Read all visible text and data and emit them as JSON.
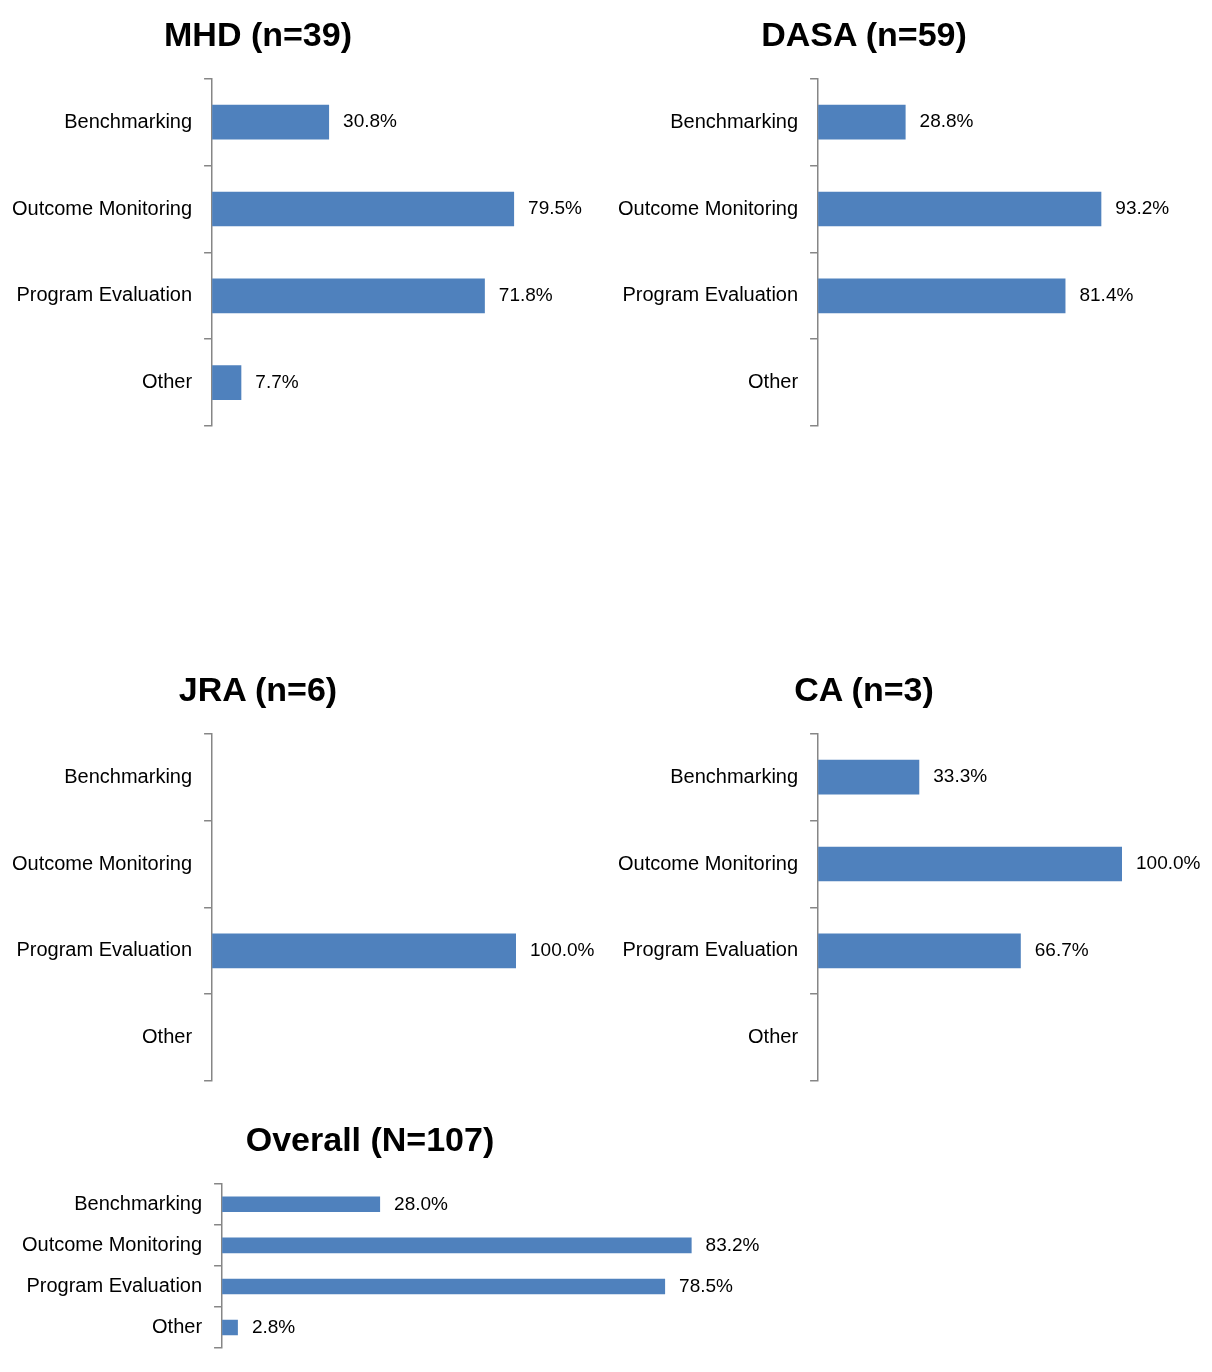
{
  "chart_data": [
    {
      "type": "bar",
      "orientation": "horizontal",
      "title": "MHD (n=39)",
      "categories": [
        "Benchmarking",
        "Outcome Monitoring",
        "Program Evaluation",
        "Other"
      ],
      "values": [
        30.8,
        79.5,
        71.8,
        7.7
      ],
      "value_labels": [
        "30.8%",
        "79.5%",
        "71.8%",
        "7.7%"
      ],
      "color": "#4f81bd",
      "grid": false,
      "legend": false,
      "tick_labels": "y"
    },
    {
      "type": "bar",
      "orientation": "horizontal",
      "title": "DASA (n=59)",
      "categories": [
        "Benchmarking",
        "Outcome Monitoring",
        "Program Evaluation",
        "Other"
      ],
      "values": [
        28.8,
        93.2,
        81.4,
        null
      ],
      "value_labels": [
        "28.8%",
        "93.2%",
        "81.4%",
        null
      ],
      "color": "#4f81bd",
      "grid": false,
      "legend": false,
      "tick_labels": "y"
    },
    {
      "type": "bar",
      "orientation": "horizontal",
      "title": "JRA (n=6)",
      "categories": [
        "Benchmarking",
        "Outcome Monitoring",
        "Program Evaluation",
        "Other"
      ],
      "values": [
        null,
        null,
        100,
        null
      ],
      "value_labels": [
        null,
        null,
        "100.0%",
        null
      ],
      "color": "#4f81bd",
      "grid": false,
      "legend": false,
      "tick_labels": "y"
    },
    {
      "type": "bar",
      "orientation": "horizontal",
      "title": "CA (n=3)",
      "categories": [
        "Benchmarking",
        "Outcome Monitoring",
        "Program Evaluation",
        "Other"
      ],
      "values": [
        33.3,
        100,
        66.7,
        null
      ],
      "value_labels": [
        "33.3%",
        "100.0%",
        "66.7%",
        null
      ],
      "color": "#4f81bd",
      "grid": false,
      "legend": false,
      "tick_labels": "y"
    },
    {
      "type": "bar",
      "orientation": "horizontal",
      "title": "Overall (N=107)",
      "categories": [
        "Benchmarking",
        "Outcome Monitoring",
        "Program Evaluation",
        "Other"
      ],
      "values": [
        28.0,
        83.2,
        78.5,
        2.8
      ],
      "value_labels": [
        "28.0%",
        "83.2%",
        "78.5%",
        "2.8%"
      ],
      "color": "#4f81bd",
      "grid": false,
      "legend": false,
      "tick_labels": "y"
    }
  ]
}
